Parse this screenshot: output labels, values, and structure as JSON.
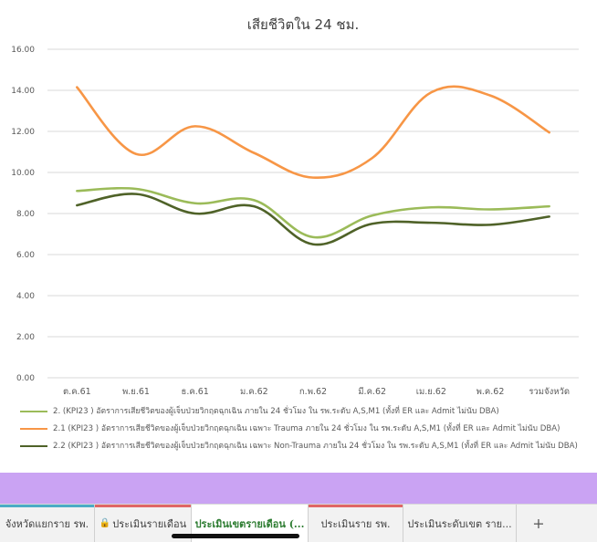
{
  "chart_data": {
    "type": "line",
    "title": "เสียชีวิตใน 24 ชม.",
    "categories": [
      "ต.ค.61",
      "พ.ย.61",
      "ธ.ค.61",
      "ม.ค.62",
      "ก.พ.62",
      "มี.ค.62",
      "เม.ย.62",
      "พ.ค.62",
      "รวมจังหวัด"
    ],
    "ylim": [
      0,
      16
    ],
    "yticks": [
      "0.00",
      "2.00",
      "4.00",
      "6.00",
      "8.00",
      "10.00",
      "12.00",
      "14.00",
      "16.00"
    ],
    "ytick_values": [
      0,
      2,
      4,
      6,
      8,
      10,
      12,
      14,
      16
    ],
    "grid": true,
    "legend_position": "bottom",
    "series": [
      {
        "name": "2. (KPI23 ) อัตราการเสียชีวิตของผู้เจ็บป่วยวิกฤตฉุกเฉิน ภายใน 24 ชั่วโมง ใน รพ.ระดับ A,S,M1 (ทั้งที่ ER และ Admit ไม่นับ DBA)",
        "color": "#9bbb59",
        "values": [
          9.1,
          9.2,
          8.5,
          8.65,
          6.85,
          7.9,
          8.3,
          8.2,
          8.35
        ]
      },
      {
        "name": "2.1 (KPI23 ) อัตราการเสียชีวิตของผู้เจ็บป่วยวิกฤตฉุกเฉิน เฉพาะ Trauma ภายใน 24 ชั่วโมง ใน รพ.ระดับ A,S,M1 (ทั้งที่ ER และ Admit ไม่นับ DBA)",
        "color": "#f79646",
        "values": [
          14.15,
          10.9,
          12.25,
          10.95,
          9.75,
          10.7,
          13.9,
          13.75,
          11.95
        ]
      },
      {
        "name": "2.2 (KPI23 ) อัตราการเสียชีวิตของผู้เจ็บป่วยวิกฤตฉุกเฉิน เฉพาะ Non-Trauma ภายใน 24 ชั่วโมง ใน รพ.ระดับ A,S,M1 (ทั้งที่ ER และ Admit ไม่นับ DBA)",
        "color": "#4f6228",
        "values": [
          8.4,
          8.95,
          8.0,
          8.35,
          6.5,
          7.5,
          7.55,
          7.45,
          7.85
        ]
      }
    ]
  },
  "tabs": [
    {
      "label": "จังหวัดแยกราย รพ.",
      "accent": "#4bacc6",
      "active": false,
      "locked": false
    },
    {
      "label": "ประเมินรายเดือน",
      "accent": "#e06666",
      "active": false,
      "locked": true
    },
    {
      "label": "ประเมินเขตรายเดือน (...",
      "accent": "",
      "active": true,
      "locked": false
    },
    {
      "label": "ประเมินราย รพ.",
      "accent": "#e06666",
      "active": false,
      "locked": false
    },
    {
      "label": "ประเมินระดับเขต ราย...",
      "accent": "",
      "active": false,
      "locked": false
    }
  ],
  "add_tab_label": "+",
  "lock_icon": "lock-icon",
  "colors": {
    "purple_band": "#caa3f3",
    "active_tab_text": "#2e7d32"
  }
}
